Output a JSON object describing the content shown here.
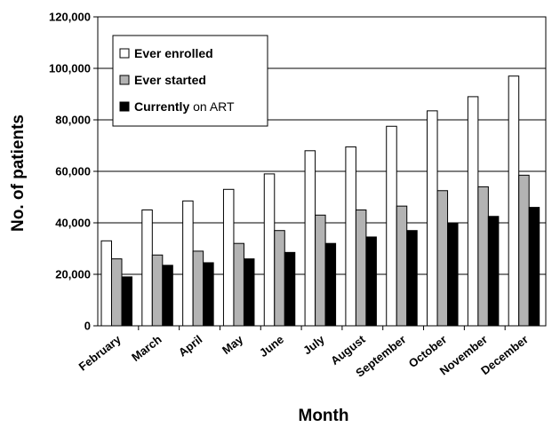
{
  "chart_data": {
    "type": "bar",
    "title": "",
    "xlabel": "Month",
    "ylabel": "No. of patients",
    "ylim": [
      0,
      120000
    ],
    "yticks": [
      0,
      20000,
      40000,
      60000,
      80000,
      100000,
      120000
    ],
    "ytick_labels": [
      "0",
      "20,000",
      "40,000",
      "60,000",
      "80,000",
      "100,000",
      "120,000"
    ],
    "grid": true,
    "legend_position": "top-left",
    "categories": [
      "February",
      "March",
      "April",
      "May",
      "June",
      "July",
      "August",
      "September",
      "October",
      "November",
      "December"
    ],
    "series": [
      {
        "name": "Ever enrolled",
        "legend_bold": "Ever enrolled",
        "legend_normal": "",
        "color": "#ffffff",
        "values": [
          33000,
          45000,
          48500,
          53000,
          59000,
          68000,
          69500,
          77500,
          83500,
          89000,
          97000
        ]
      },
      {
        "name": "Ever started",
        "legend_bold": "Ever started",
        "legend_normal": "",
        "color": "#b3b3b3",
        "values": [
          26000,
          27500,
          29000,
          32000,
          37000,
          43000,
          45000,
          46500,
          52500,
          54000,
          58500
        ]
      },
      {
        "name": "Currently on ART",
        "legend_bold": "Currently",
        "legend_normal": " on ART",
        "color": "#000000",
        "values": [
          19000,
          23500,
          24500,
          26000,
          28500,
          32000,
          34500,
          37000,
          40000,
          42500,
          46000
        ]
      }
    ]
  }
}
